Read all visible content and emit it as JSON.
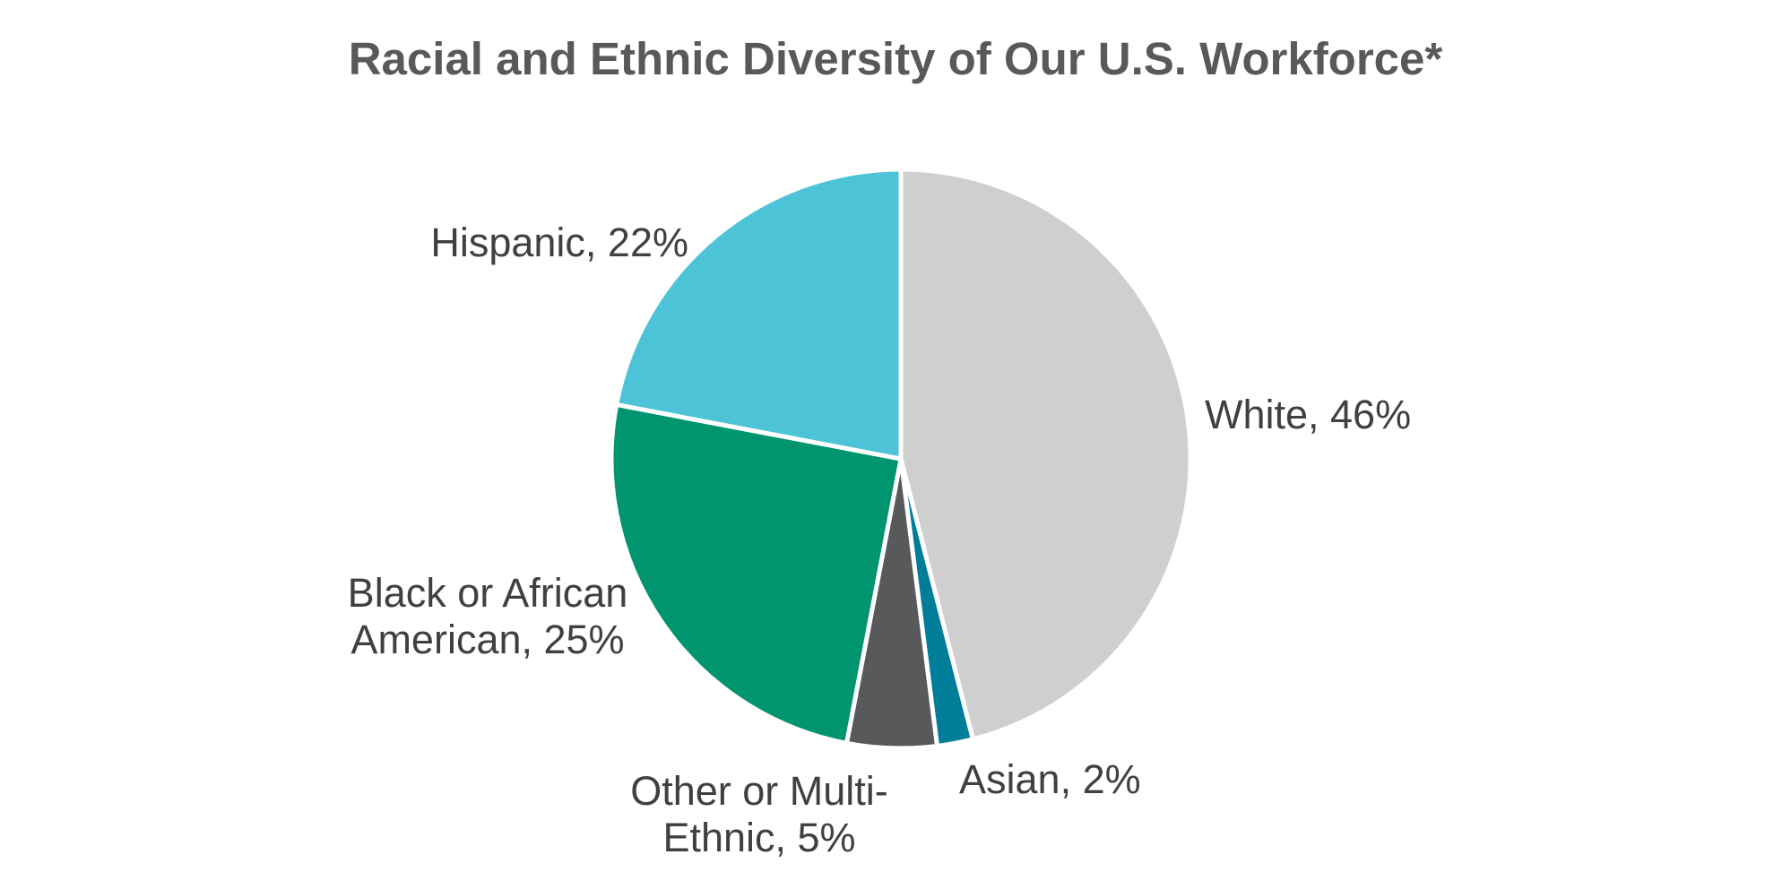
{
  "chart_data": {
    "type": "pie",
    "title": "Racial and Ethnic Diversity of Our U.S. Workforce*",
    "slices": [
      {
        "label": "White",
        "value": 46,
        "color": "#d0cfd0",
        "data_label": "White, 46%"
      },
      {
        "label": "Asian",
        "value": 2,
        "color": "#007d99",
        "data_label": "Asian, 2%"
      },
      {
        "label": "Other or Multi-Ethnic",
        "value": 5,
        "color": "#58595b",
        "data_label": "Other or Multi-Ethnic, 5%"
      },
      {
        "label": "Black or African American",
        "value": 25,
        "color": "#00956e",
        "data_label": "Black or African American, 25%"
      },
      {
        "label": "Hispanic",
        "value": 22,
        "color": "#4cc3d6",
        "data_label": "Hispanic, 22%"
      }
    ],
    "labels": {
      "white": "White, 46%",
      "asian": "Asian, 2%",
      "other_line1": "Other or Multi-",
      "other_line2": "Ethnic, 5%",
      "black_line1": "Black or African",
      "black_line2": "American, 25%",
      "hispanic": "Hispanic, 22%"
    },
    "legend": "none",
    "start_angle": "12 o'clock, clockwise"
  }
}
